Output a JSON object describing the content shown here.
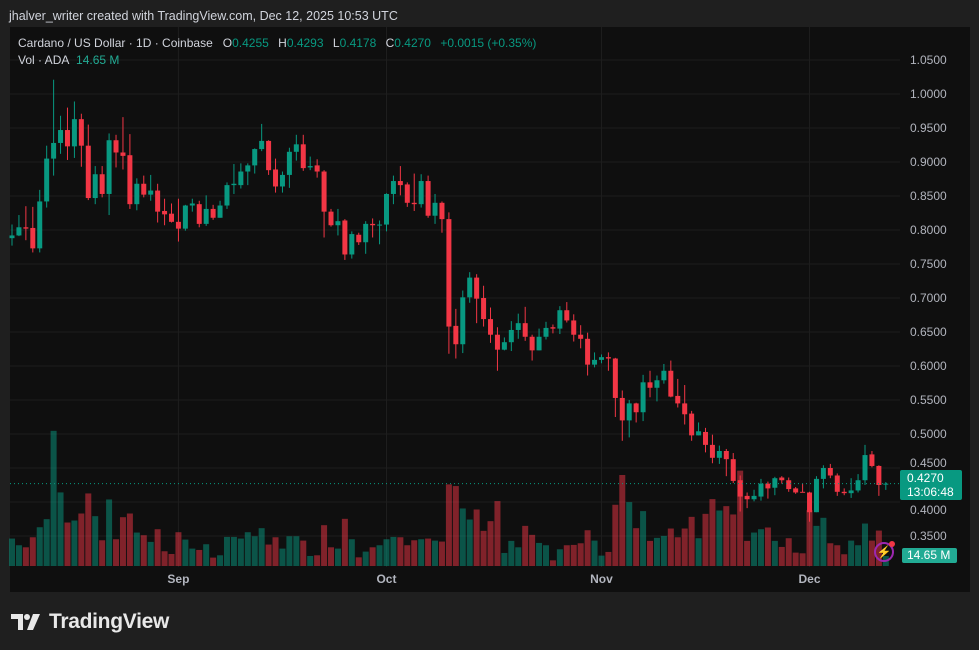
{
  "credit": "jhalver_writer created with TradingView.com, Dec 12, 2025 10:53 UTC",
  "legend": {
    "symbol": "Cardano / US Dollar · 1D · Coinbase",
    "o_label": "O",
    "o": "0.4255",
    "h_label": "H",
    "h": "0.4293",
    "l_label": "L",
    "l": "0.4178",
    "c_label": "C",
    "c": "0.4270",
    "change": "+0.0015 (+0.35%)",
    "vol_label": "Vol · ADA",
    "vol": "14.65 M"
  },
  "last_price": {
    "price": "0.4270",
    "countdown": "13:06:48"
  },
  "volume_label": "14.65 M",
  "brand": "TradingView",
  "colors": {
    "up": "#089981",
    "down": "#F23645",
    "up_volume": "#089981",
    "down_volume": "#F23645",
    "background": "#0f0f0f",
    "frame": "#1f1f1f"
  },
  "icons": [
    "tradingview-logo-icon",
    "lightning-alert-icon"
  ],
  "chart_data": {
    "type": "candlestick",
    "title": "Cardano / US Dollar · 1D · Coinbase",
    "y_ticks": [
      "1.0500",
      "1.0000",
      "0.9500",
      "0.9000",
      "0.8500",
      "0.8000",
      "0.7500",
      "0.7000",
      "0.6500",
      "0.6000",
      "0.5500",
      "0.5000",
      "0.4500",
      "0.4000",
      "0.3500"
    ],
    "ylim": [
      0.3275,
      1.0735
    ],
    "x_ticks": [
      {
        "label": "Sep",
        "date": "2025-09-01"
      },
      {
        "label": "Oct",
        "date": "2025-10-01"
      },
      {
        "label": "Nov",
        "date": "2025-11-01"
      },
      {
        "label": "Dec",
        "date": "2025-12-01"
      }
    ],
    "grid": true,
    "volume_unit": "M ADA",
    "candle_fields": [
      "date",
      "open",
      "high",
      "low",
      "close",
      "volume"
    ],
    "candles": [
      [
        "2025-08-08",
        0.788,
        0.808,
        0.777,
        0.792,
        40.2
      ],
      [
        "2025-08-09",
        0.792,
        0.822,
        0.791,
        0.804,
        30.4
      ],
      [
        "2025-08-10",
        0.804,
        0.835,
        0.785,
        0.802,
        27.4
      ],
      [
        "2025-08-11",
        0.803,
        0.834,
        0.767,
        0.773,
        42.1
      ],
      [
        "2025-08-12",
        0.773,
        0.859,
        0.767,
        0.842,
        56.8
      ],
      [
        "2025-08-13",
        0.842,
        0.924,
        0.833,
        0.905,
        68.6
      ],
      [
        "2025-08-14",
        0.905,
        1.021,
        0.88,
        0.928,
        198.0
      ],
      [
        "2025-08-15",
        0.928,
        0.968,
        0.912,
        0.947,
        107.8
      ],
      [
        "2025-08-16",
        0.947,
        0.98,
        0.903,
        0.923,
        63.7
      ],
      [
        "2025-08-17",
        0.923,
        0.989,
        0.906,
        0.963,
        66.6
      ],
      [
        "2025-08-18",
        0.963,
        0.971,
        0.893,
        0.924,
        76.9
      ],
      [
        "2025-08-19",
        0.924,
        0.955,
        0.844,
        0.847,
        106.3
      ],
      [
        "2025-08-20",
        0.847,
        0.894,
        0.838,
        0.882,
        73.0
      ],
      [
        "2025-08-21",
        0.882,
        0.894,
        0.848,
        0.853,
        37.7
      ],
      [
        "2025-08-22",
        0.853,
        0.942,
        0.822,
        0.932,
        97.5
      ],
      [
        "2025-08-23",
        0.932,
        0.94,
        0.892,
        0.914,
        39.2
      ],
      [
        "2025-08-24",
        0.914,
        0.966,
        0.889,
        0.909,
        71.5
      ],
      [
        "2025-08-25",
        0.91,
        0.941,
        0.831,
        0.838,
        76.9
      ],
      [
        "2025-08-26",
        0.838,
        0.876,
        0.829,
        0.868,
        49.0
      ],
      [
        "2025-08-27",
        0.868,
        0.88,
        0.848,
        0.852,
        45.1
      ],
      [
        "2025-08-28",
        0.852,
        0.881,
        0.843,
        0.858,
        35.3
      ],
      [
        "2025-08-29",
        0.858,
        0.868,
        0.811,
        0.827,
        53.9
      ],
      [
        "2025-08-30",
        0.828,
        0.846,
        0.807,
        0.823,
        21.6
      ],
      [
        "2025-08-31",
        0.824,
        0.839,
        0.811,
        0.812,
        17.6
      ],
      [
        "2025-09-01",
        0.812,
        0.846,
        0.783,
        0.802,
        49.5
      ],
      [
        "2025-09-02",
        0.802,
        0.837,
        0.799,
        0.836,
        38.7
      ],
      [
        "2025-09-03",
        0.836,
        0.846,
        0.827,
        0.839,
        25.5
      ],
      [
        "2025-09-04",
        0.838,
        0.843,
        0.804,
        0.809,
        23.5
      ],
      [
        "2025-09-05",
        0.809,
        0.851,
        0.806,
        0.831,
        31.9
      ],
      [
        "2025-09-06",
        0.831,
        0.837,
        0.815,
        0.818,
        12.3
      ],
      [
        "2025-09-07",
        0.818,
        0.843,
        0.818,
        0.836,
        15.7
      ],
      [
        "2025-09-08",
        0.836,
        0.87,
        0.831,
        0.866,
        42.6
      ],
      [
        "2025-09-09",
        0.866,
        0.897,
        0.853,
        0.868,
        42.6
      ],
      [
        "2025-09-10",
        0.866,
        0.898,
        0.861,
        0.886,
        40.2
      ],
      [
        "2025-09-11",
        0.886,
        0.898,
        0.866,
        0.895,
        49.5
      ],
      [
        "2025-09-12",
        0.895,
        0.92,
        0.883,
        0.919,
        43.6
      ],
      [
        "2025-09-13",
        0.919,
        0.956,
        0.916,
        0.931,
        55.4
      ],
      [
        "2025-09-14",
        0.931,
        0.932,
        0.881,
        0.888,
        31.4
      ],
      [
        "2025-09-15",
        0.889,
        0.905,
        0.855,
        0.864,
        42.1
      ],
      [
        "2025-09-16",
        0.864,
        0.886,
        0.855,
        0.881,
        25.5
      ],
      [
        "2025-09-17",
        0.881,
        0.921,
        0.862,
        0.915,
        43.6
      ],
      [
        "2025-09-18",
        0.915,
        0.94,
        0.902,
        0.926,
        43.6
      ],
      [
        "2025-09-19",
        0.926,
        0.94,
        0.887,
        0.891,
        37.2
      ],
      [
        "2025-09-20",
        0.892,
        0.908,
        0.888,
        0.894,
        14.7
      ],
      [
        "2025-09-21",
        0.895,
        0.904,
        0.877,
        0.886,
        15.7
      ],
      [
        "2025-09-22",
        0.886,
        0.888,
        0.789,
        0.827,
        59.8
      ],
      [
        "2025-09-23",
        0.827,
        0.831,
        0.805,
        0.807,
        27.4
      ],
      [
        "2025-09-24",
        0.807,
        0.831,
        0.792,
        0.813,
        25.5
      ],
      [
        "2025-09-25",
        0.814,
        0.816,
        0.756,
        0.764,
        69.1
      ],
      [
        "2025-09-26",
        0.764,
        0.798,
        0.758,
        0.794,
        39.2
      ],
      [
        "2025-09-27",
        0.793,
        0.796,
        0.778,
        0.782,
        12.7
      ],
      [
        "2025-09-28",
        0.782,
        0.813,
        0.765,
        0.809,
        21.1
      ],
      [
        "2025-09-29",
        0.809,
        0.817,
        0.789,
        0.807,
        27.4
      ],
      [
        "2025-09-30",
        0.807,
        0.814,
        0.779,
        0.808,
        30.4
      ],
      [
        "2025-10-01",
        0.808,
        0.854,
        0.798,
        0.853,
        39.2
      ],
      [
        "2025-10-02",
        0.853,
        0.88,
        0.838,
        0.872,
        42.6
      ],
      [
        "2025-10-03",
        0.872,
        0.894,
        0.851,
        0.866,
        42.1
      ],
      [
        "2025-10-04",
        0.867,
        0.87,
        0.834,
        0.84,
        30.4
      ],
      [
        "2025-10-05",
        0.84,
        0.883,
        0.828,
        0.838,
        37.7
      ],
      [
        "2025-10-06",
        0.838,
        0.882,
        0.833,
        0.872,
        39.2
      ],
      [
        "2025-10-07",
        0.872,
        0.88,
        0.818,
        0.821,
        40.2
      ],
      [
        "2025-10-08",
        0.821,
        0.853,
        0.809,
        0.84,
        37.2
      ],
      [
        "2025-10-09",
        0.84,
        0.842,
        0.796,
        0.816,
        35.8
      ],
      [
        "2025-10-10",
        0.816,
        0.826,
        0.618,
        0.658,
        119.6
      ],
      [
        "2025-10-11",
        0.659,
        0.684,
        0.611,
        0.632,
        117.1
      ],
      [
        "2025-10-12",
        0.632,
        0.711,
        0.619,
        0.701,
        84.3
      ],
      [
        "2025-10-13",
        0.701,
        0.738,
        0.693,
        0.73,
        68.1
      ],
      [
        "2025-10-14",
        0.73,
        0.735,
        0.663,
        0.699,
        82.8
      ],
      [
        "2025-10-15",
        0.7,
        0.718,
        0.658,
        0.669,
        51.5
      ],
      [
        "2025-10-16",
        0.669,
        0.686,
        0.634,
        0.646,
        65.7
      ],
      [
        "2025-10-17",
        0.646,
        0.657,
        0.593,
        0.624,
        95.1
      ],
      [
        "2025-10-18",
        0.624,
        0.642,
        0.623,
        0.635,
        19.1
      ],
      [
        "2025-10-19",
        0.635,
        0.666,
        0.622,
        0.653,
        36.8
      ],
      [
        "2025-10-20",
        0.653,
        0.677,
        0.64,
        0.663,
        27.4
      ],
      [
        "2025-10-21",
        0.663,
        0.687,
        0.637,
        0.643,
        58.8
      ],
      [
        "2025-10-22",
        0.643,
        0.646,
        0.608,
        0.623,
        45.6
      ],
      [
        "2025-10-23",
        0.623,
        0.655,
        0.623,
        0.643,
        33.8
      ],
      [
        "2025-10-24",
        0.643,
        0.665,
        0.639,
        0.656,
        30.4
      ],
      [
        "2025-10-25",
        0.657,
        0.661,
        0.648,
        0.655,
        8.3
      ],
      [
        "2025-10-26",
        0.655,
        0.688,
        0.647,
        0.682,
        24.5
      ],
      [
        "2025-10-27",
        0.682,
        0.694,
        0.664,
        0.667,
        30.4
      ],
      [
        "2025-10-28",
        0.667,
        0.676,
        0.636,
        0.646,
        30.9
      ],
      [
        "2025-10-29",
        0.646,
        0.66,
        0.626,
        0.64,
        33.3
      ],
      [
        "2025-10-30",
        0.64,
        0.649,
        0.586,
        0.602,
        52.4
      ],
      [
        "2025-10-31",
        0.602,
        0.62,
        0.598,
        0.609,
        37.2
      ],
      [
        "2025-11-01",
        0.609,
        0.617,
        0.604,
        0.613,
        15.2
      ],
      [
        "2025-11-02",
        0.613,
        0.62,
        0.593,
        0.611,
        20.6
      ],
      [
        "2025-11-03",
        0.611,
        0.612,
        0.525,
        0.553,
        89.7
      ],
      [
        "2025-11-04",
        0.553,
        0.564,
        0.49,
        0.52,
        133.3
      ],
      [
        "2025-11-05",
        0.52,
        0.55,
        0.495,
        0.545,
        93.6
      ],
      [
        "2025-11-06",
        0.545,
        0.546,
        0.517,
        0.532,
        55.4
      ],
      [
        "2025-11-07",
        0.532,
        0.587,
        0.519,
        0.576,
        80.4
      ],
      [
        "2025-11-08",
        0.576,
        0.593,
        0.554,
        0.568,
        36.8
      ],
      [
        "2025-11-09",
        0.568,
        0.586,
        0.548,
        0.579,
        41.2
      ],
      [
        "2025-11-10",
        0.579,
        0.603,
        0.574,
        0.593,
        44.1
      ],
      [
        "2025-11-11",
        0.593,
        0.608,
        0.554,
        0.555,
        54.9
      ],
      [
        "2025-11-12",
        0.556,
        0.581,
        0.539,
        0.545,
        42.1
      ],
      [
        "2025-11-13",
        0.545,
        0.572,
        0.514,
        0.529,
        54.9
      ],
      [
        "2025-11-14",
        0.53,
        0.534,
        0.49,
        0.498,
        72.0
      ],
      [
        "2025-11-15",
        0.498,
        0.517,
        0.498,
        0.504,
        40.7
      ],
      [
        "2025-11-16",
        0.503,
        0.509,
        0.473,
        0.484,
        76.4
      ],
      [
        "2025-11-17",
        0.484,
        0.499,
        0.457,
        0.465,
        98.0
      ],
      [
        "2025-11-18",
        0.465,
        0.483,
        0.456,
        0.475,
        81.3
      ],
      [
        "2025-11-19",
        0.475,
        0.478,
        0.438,
        0.463,
        87.7
      ],
      [
        "2025-11-20",
        0.463,
        0.472,
        0.428,
        0.431,
        75.5
      ],
      [
        "2025-11-21",
        0.432,
        0.439,
        0.386,
        0.408,
        139.7
      ],
      [
        "2025-11-22",
        0.409,
        0.414,
        0.391,
        0.404,
        36.8
      ],
      [
        "2025-11-23",
        0.404,
        0.418,
        0.401,
        0.409,
        49.0
      ],
      [
        "2025-11-24",
        0.408,
        0.434,
        0.402,
        0.427,
        53.9
      ],
      [
        "2025-11-25",
        0.427,
        0.43,
        0.405,
        0.42,
        56.4
      ],
      [
        "2025-11-26",
        0.421,
        0.437,
        0.41,
        0.435,
        36.8
      ],
      [
        "2025-11-27",
        0.436,
        0.438,
        0.427,
        0.432,
        27.9
      ],
      [
        "2025-11-28",
        0.432,
        0.436,
        0.415,
        0.419,
        40.7
      ],
      [
        "2025-11-29",
        0.42,
        0.422,
        0.412,
        0.414,
        19.6
      ],
      [
        "2025-11-30",
        0.415,
        0.427,
        0.414,
        0.414,
        18.6
      ],
      [
        "2025-12-01",
        0.414,
        0.415,
        0.371,
        0.385,
        81.8
      ],
      [
        "2025-12-02",
        0.385,
        0.438,
        0.385,
        0.434,
        58.8
      ],
      [
        "2025-12-03",
        0.434,
        0.454,
        0.42,
        0.45,
        70.6
      ],
      [
        "2025-12-04",
        0.45,
        0.456,
        0.435,
        0.439,
        33.3
      ],
      [
        "2025-12-05",
        0.439,
        0.442,
        0.409,
        0.415,
        30.4
      ],
      [
        "2025-12-06",
        0.415,
        0.42,
        0.41,
        0.413,
        17.2
      ],
      [
        "2025-12-07",
        0.413,
        0.435,
        0.406,
        0.417,
        37.2
      ],
      [
        "2025-12-08",
        0.417,
        0.441,
        0.414,
        0.432,
        30.4
      ],
      [
        "2025-12-09",
        0.432,
        0.484,
        0.425,
        0.469,
        62.2
      ],
      [
        "2025-12-10",
        0.47,
        0.475,
        0.451,
        0.453,
        37.2
      ],
      [
        "2025-12-11",
        0.453,
        0.454,
        0.409,
        0.425,
        51.9
      ],
      [
        "2025-12-12",
        0.4255,
        0.4293,
        0.4178,
        0.427,
        14.65
      ]
    ],
    "last_close": 0.427
  }
}
